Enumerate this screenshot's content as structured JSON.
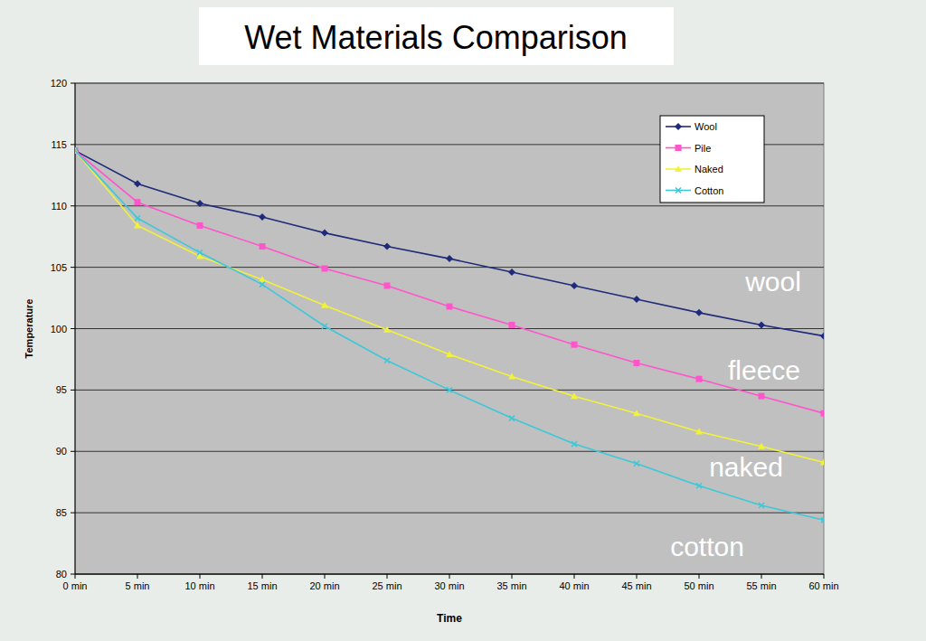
{
  "chart_data": {
    "type": "line",
    "title": "Wet Materials Comparison",
    "x_label": "Time",
    "y_label": "Temperature",
    "categories": [
      "0 min",
      "5 min",
      "10 min",
      "15 min",
      "20 min",
      "25 min",
      "30 min",
      "35 min",
      "40 min",
      "45 min",
      "50 min",
      "55 min",
      "60 min"
    ],
    "series": [
      {
        "name": "Wool",
        "color": "#1e2a7a",
        "marker": "diamond",
        "values": [
          114.5,
          111.8,
          110.2,
          109.1,
          107.8,
          106.7,
          105.7,
          104.6,
          103.5,
          102.4,
          101.3,
          100.3,
          99.4
        ]
      },
      {
        "name": "Pile",
        "color": "#ff55cc",
        "marker": "square",
        "values": [
          114.5,
          110.3,
          108.4,
          106.7,
          104.9,
          103.5,
          101.8,
          100.3,
          98.7,
          97.2,
          95.9,
          94.5,
          93.1
        ]
      },
      {
        "name": "Naked",
        "color": "#f2f23a",
        "marker": "triangle",
        "values": [
          114.5,
          108.4,
          105.9,
          104.0,
          101.9,
          99.9,
          97.9,
          96.1,
          94.5,
          93.1,
          91.6,
          90.4,
          89.1
        ]
      },
      {
        "name": "Cotton",
        "color": "#3cc8d8",
        "marker": "x",
        "values": [
          114.5,
          109.0,
          106.2,
          103.6,
          100.2,
          97.4,
          95.0,
          92.7,
          90.6,
          89.0,
          87.2,
          85.6,
          84.4
        ]
      }
    ],
    "annotations": [
      "wool",
      "fleece",
      "naked",
      "cotton"
    ],
    "ylim": [
      80,
      120
    ],
    "yticks": [
      80,
      85,
      90,
      95,
      100,
      105,
      110,
      115,
      120
    ],
    "grid": true,
    "legend": "top-right"
  }
}
